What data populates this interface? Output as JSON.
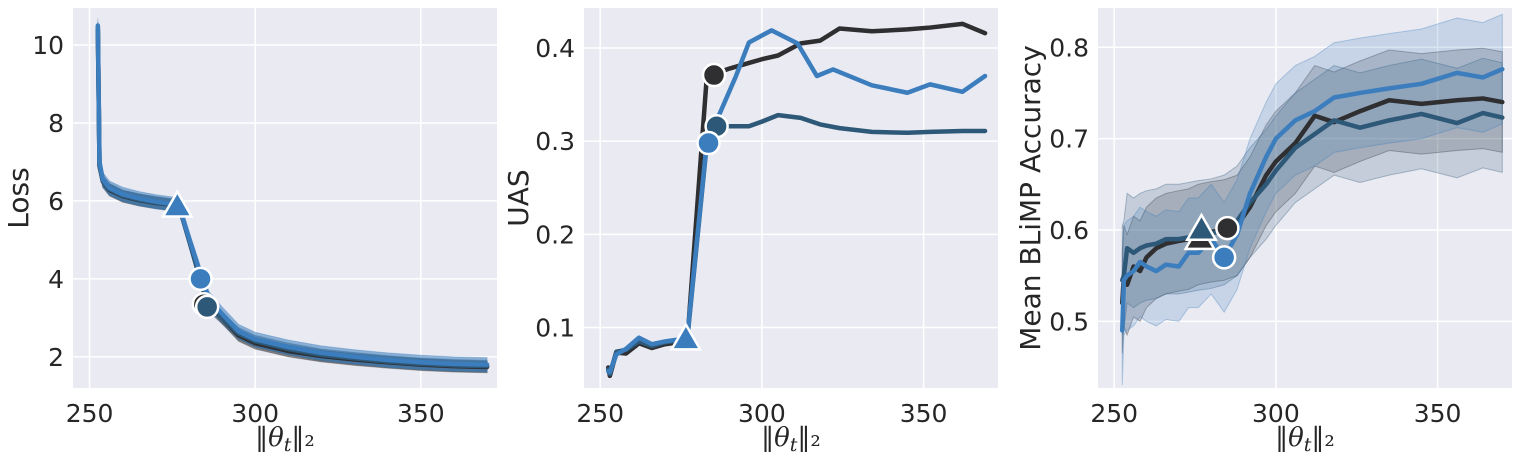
{
  "chart_data": [
    {
      "type": "line",
      "title": "",
      "xlabel": "‖θ_t‖₂",
      "ylabel": "Loss",
      "xlim": [
        245,
        373
      ],
      "ylim": [
        1.2,
        10.95
      ],
      "xticks": [
        "250",
        "300",
        "350"
      ],
      "yticks": [
        "2",
        "4",
        "6",
        "8",
        "10"
      ],
      "grid": true,
      "series": [
        {
          "color": "#2f2f31",
          "x": [
            252.5,
            253,
            254,
            256,
            260,
            265,
            270,
            275,
            277,
            280,
            284,
            286,
            290,
            295,
            300,
            310,
            320,
            330,
            340,
            350,
            360,
            370
          ],
          "y": [
            10.4,
            6.9,
            6.5,
            6.28,
            6.12,
            6.02,
            5.95,
            5.9,
            5.87,
            5.0,
            3.9,
            3.4,
            3.0,
            2.55,
            2.35,
            2.15,
            2.02,
            1.93,
            1.86,
            1.8,
            1.76,
            1.74
          ],
          "band": 0.15,
          "markers": [
            {
              "shape": "circle",
              "x": 284.5,
              "y": 3.35
            }
          ]
        },
        {
          "color": "#2e5877",
          "x": [
            252.5,
            253,
            254,
            256,
            260,
            265,
            270,
            275,
            277,
            280,
            284,
            286,
            290,
            295,
            300,
            310,
            320,
            330,
            340,
            350,
            360,
            370
          ],
          "y": [
            10.45,
            6.9,
            6.5,
            6.3,
            6.13,
            6.03,
            5.96,
            5.9,
            5.87,
            5.0,
            3.8,
            3.3,
            3.0,
            2.6,
            2.4,
            2.2,
            2.05,
            1.96,
            1.88,
            1.82,
            1.78,
            1.76
          ],
          "band": 0.15,
          "markers": [
            {
              "shape": "circle",
              "x": 285.5,
              "y": 3.28
            }
          ]
        },
        {
          "color": "#3b7dbd",
          "x": [
            252.5,
            253,
            254,
            256,
            260,
            265,
            270,
            275,
            277,
            280,
            284,
            286,
            290,
            295,
            300,
            310,
            320,
            330,
            340,
            350,
            360,
            370
          ],
          "y": [
            10.5,
            7.0,
            6.55,
            6.33,
            6.17,
            6.06,
            5.98,
            5.92,
            5.88,
            5.05,
            4.0,
            3.5,
            3.1,
            2.65,
            2.45,
            2.25,
            2.1,
            2.0,
            1.92,
            1.86,
            1.82,
            1.8
          ],
          "band": 0.18,
          "markers": [
            {
              "shape": "triangle",
              "x": 276.5,
              "y": 5.85
            },
            {
              "shape": "circle",
              "x": 283.5,
              "y": 4.0
            }
          ]
        }
      ]
    },
    {
      "type": "line",
      "title": "",
      "xlabel": "‖θ_t‖₂",
      "ylabel": "UAS",
      "xlim": [
        245,
        373
      ],
      "ylim": [
        0.035,
        0.443
      ],
      "xticks": [
        "250",
        "300",
        "350"
      ],
      "yticks": [
        "0.1",
        "0.2",
        "0.3",
        "0.4"
      ],
      "grid": true,
      "series": [
        {
          "color": "#2f2f31",
          "x": [
            252.5,
            253,
            255,
            258,
            262,
            266,
            270,
            274,
            277,
            283,
            285,
            290,
            296,
            300,
            305,
            312,
            318,
            324,
            334,
            345,
            352,
            362,
            369
          ],
          "y": [
            0.057,
            0.048,
            0.073,
            0.072,
            0.083,
            0.078,
            0.082,
            0.084,
            0.088,
            0.371,
            0.372,
            0.378,
            0.384,
            0.388,
            0.392,
            0.405,
            0.408,
            0.421,
            0.418,
            0.42,
            0.422,
            0.426,
            0.416
          ],
          "markers": [
            {
              "shape": "circle",
              "x": 285.2,
              "y": 0.371
            }
          ]
        },
        {
          "color": "#2e5877",
          "x": [
            252.5,
            253,
            255,
            258,
            262,
            266,
            270,
            274,
            277,
            283,
            286,
            290,
            296,
            300,
            305,
            312,
            318,
            324,
            334,
            345,
            352,
            362,
            369
          ],
          "y": [
            0.055,
            0.05,
            0.074,
            0.076,
            0.085,
            0.08,
            0.084,
            0.086,
            0.09,
            0.298,
            0.316,
            0.316,
            0.316,
            0.321,
            0.328,
            0.325,
            0.318,
            0.314,
            0.31,
            0.309,
            0.31,
            0.311,
            0.311
          ],
          "markers": [
            {
              "shape": "circle",
              "x": 286,
              "y": 0.316
            }
          ]
        },
        {
          "color": "#3b7dbd",
          "x": [
            252.5,
            253,
            255,
            258,
            262,
            266,
            270,
            274,
            277,
            283,
            287,
            292,
            296,
            303,
            311,
            317,
            322,
            334,
            345,
            352,
            362,
            369
          ],
          "y": [
            0.053,
            0.052,
            0.071,
            0.077,
            0.089,
            0.082,
            0.085,
            0.087,
            0.092,
            0.3,
            0.33,
            0.37,
            0.406,
            0.419,
            0.405,
            0.37,
            0.377,
            0.36,
            0.352,
            0.361,
            0.353,
            0.37
          ],
          "markers": [
            {
              "shape": "triangle",
              "x": 276.5,
              "y": 0.087
            },
            {
              "shape": "circle",
              "x": 283.5,
              "y": 0.298
            }
          ]
        }
      ]
    },
    {
      "type": "line",
      "title": "",
      "xlabel": "‖θ_t‖₂",
      "ylabel": "Mean BLiMP Accuracy",
      "xlim": [
        245,
        373
      ],
      "ylim": [
        0.427,
        0.843
      ],
      "xticks": [
        "250",
        "300",
        "350"
      ],
      "yticks": [
        "0.5",
        "0.6",
        "0.7",
        "0.8"
      ],
      "grid": true,
      "series": [
        {
          "color": "#2f2f31",
          "x": [
            252.5,
            253,
            254,
            256,
            258,
            260,
            263,
            266,
            270,
            273,
            276,
            280,
            284,
            288,
            292,
            297,
            300,
            306,
            312,
            318,
            326,
            335,
            345,
            356,
            364,
            370
          ],
          "y": [
            0.52,
            0.55,
            0.54,
            0.56,
            0.555,
            0.57,
            0.58,
            0.585,
            0.588,
            0.59,
            0.595,
            0.598,
            0.6,
            0.605,
            0.625,
            0.66,
            0.675,
            0.695,
            0.725,
            0.718,
            0.73,
            0.742,
            0.738,
            0.742,
            0.744,
            0.74
          ],
          "band": 0.055,
          "markers": [
            {
              "shape": "triangle",
              "x": 276.5,
              "y": 0.59
            },
            {
              "shape": "circle",
              "x": 285,
              "y": 0.602
            }
          ]
        },
        {
          "color": "#2e5877",
          "x": [
            252.5,
            253,
            254,
            256,
            258,
            260,
            263,
            266,
            270,
            273,
            276,
            280,
            284,
            288,
            292,
            297,
            300,
            306,
            312,
            318,
            326,
            335,
            345,
            356,
            364,
            370
          ],
          "y": [
            0.545,
            0.55,
            0.58,
            0.575,
            0.58,
            0.583,
            0.585,
            0.59,
            0.59,
            0.592,
            0.594,
            0.596,
            0.6,
            0.61,
            0.63,
            0.65,
            0.665,
            0.69,
            0.705,
            0.72,
            0.712,
            0.72,
            0.727,
            0.717,
            0.728,
            0.723
          ],
          "band": 0.06,
          "markers": [
            {
              "shape": "triangle",
              "x": 277,
              "y": 0.6
            }
          ]
        },
        {
          "color": "#3b7dbd",
          "x": [
            252.5,
            253,
            254,
            256,
            258,
            260,
            263,
            266,
            270,
            273,
            276,
            280,
            284,
            288,
            292,
            297,
            300,
            306,
            312,
            318,
            326,
            335,
            345,
            356,
            364,
            370
          ],
          "y": [
            0.49,
            0.545,
            0.55,
            0.555,
            0.565,
            0.56,
            0.555,
            0.562,
            0.56,
            0.575,
            0.575,
            0.59,
            0.57,
            0.595,
            0.64,
            0.68,
            0.7,
            0.72,
            0.73,
            0.745,
            0.75,
            0.755,
            0.76,
            0.772,
            0.767,
            0.776
          ],
          "band": 0.06,
          "markers": [
            {
              "shape": "circle",
              "x": 284,
              "y": 0.57
            }
          ]
        }
      ]
    }
  ]
}
